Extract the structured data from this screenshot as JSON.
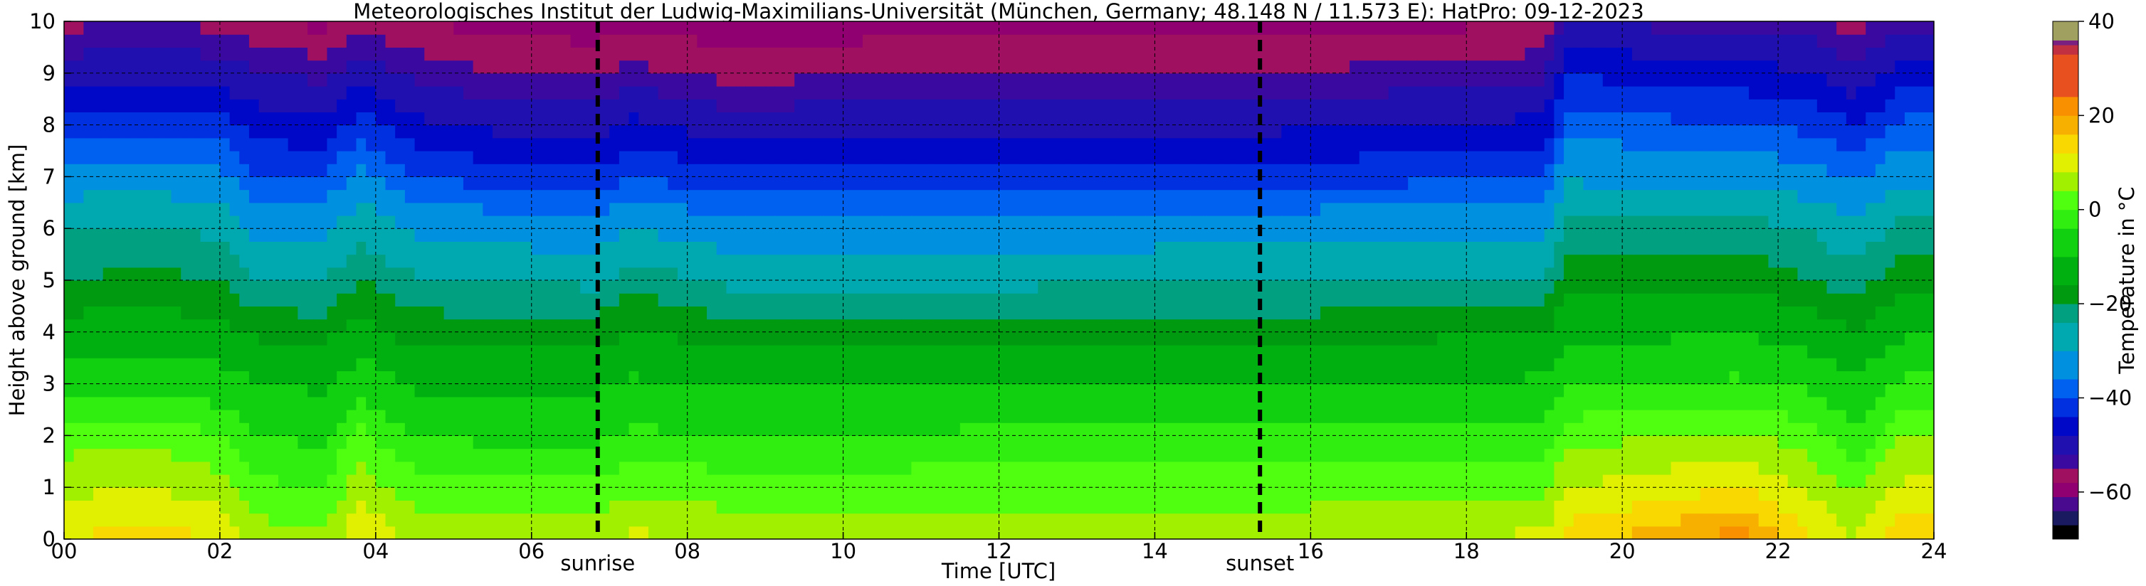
{
  "chart_data": {
    "type": "heatmap",
    "title": "Meteorologisches Institut der Ludwig-Maximilians-Universität (München, Germany; 48.148 N / 11.573 E):    HatPro: 09-12-2023",
    "xlabel": "Time [UTC]",
    "ylabel": "Height above ground [km]",
    "colorbar_label": "Temperature in °C",
    "xlim": [
      0,
      24
    ],
    "ylim": [
      0,
      10
    ],
    "x_ticks": [
      0,
      2,
      4,
      6,
      8,
      10,
      12,
      14,
      16,
      18,
      20,
      22,
      24
    ],
    "x_tick_labels": [
      "00",
      "02",
      "04",
      "06",
      "08",
      "10",
      "12",
      "14",
      "16",
      "18",
      "20",
      "22",
      "24"
    ],
    "y_ticks": [
      0,
      1,
      2,
      3,
      4,
      5,
      6,
      7,
      8,
      9,
      10
    ],
    "y_tick_labels": [
      "0",
      "1",
      "2",
      "3",
      "4",
      "5",
      "6",
      "7",
      "8",
      "9",
      "10"
    ],
    "grid": true,
    "colorbar": {
      "range": [
        -70,
        40
      ],
      "ticks": [
        -60,
        -40,
        -20,
        0,
        20,
        40
      ],
      "tick_labels": [
        "−60",
        "−40",
        "−20",
        "0",
        "20",
        "40"
      ]
    },
    "annotations": [
      {
        "label": "sunrise",
        "x": 6.85
      },
      {
        "label": "sunset",
        "x": 15.35
      }
    ],
    "temperature_profiles": {
      "heights_km": [
        0,
        1,
        2,
        3,
        4,
        5,
        6,
        7,
        8,
        9,
        10
      ],
      "profiles": [
        {
          "time_utc": 0.0,
          "temps_c": [
            12,
            7,
            2,
            -6,
            -14,
            -20,
            -24,
            -34,
            -42,
            -50,
            -56
          ]
        },
        {
          "time_utc": 1.0,
          "temps_c": [
            14,
            8,
            3,
            -5,
            -13,
            -19,
            -23,
            -33,
            -41,
            -49,
            -55
          ]
        },
        {
          "time_utc": 2.0,
          "temps_c": [
            12,
            6,
            0,
            -7,
            -15,
            -20,
            -25,
            -35,
            -42,
            -50,
            -56
          ]
        },
        {
          "time_utc": 2.5,
          "temps_c": [
            6,
            1,
            -4,
            -10,
            -17,
            -24,
            -32,
            -40,
            -46,
            -52,
            -58
          ]
        },
        {
          "time_utc": 3.3,
          "temps_c": [
            5,
            0,
            -5,
            -11,
            -18,
            -24,
            -32,
            -40,
            -47,
            -53,
            -59
          ]
        },
        {
          "time_utc": 3.8,
          "temps_c": [
            12,
            6,
            1,
            -6,
            -14,
            -20,
            -25,
            -35,
            -42,
            -50,
            -56
          ]
        },
        {
          "time_utc": 4.5,
          "temps_c": [
            7,
            2,
            -4,
            -11,
            -18,
            -23,
            -31,
            -40,
            -47,
            -53,
            -58
          ]
        },
        {
          "time_utc": 5.5,
          "temps_c": [
            6,
            1,
            -5,
            -11,
            -18,
            -24,
            -33,
            -42,
            -49,
            -55,
            -59
          ]
        },
        {
          "time_utc": 6.8,
          "temps_c": [
            6,
            1,
            -5,
            -11,
            -18,
            -25,
            -34,
            -43,
            -50,
            -55,
            -60
          ]
        },
        {
          "time_utc": 7.3,
          "temps_c": [
            9,
            3,
            -3,
            -9,
            -16,
            -21,
            -30,
            -40,
            -47,
            -54,
            -59
          ]
        },
        {
          "time_utc": 8.5,
          "temps_c": [
            7,
            2,
            -4,
            -10,
            -18,
            -25,
            -34,
            -43,
            -50,
            -56,
            -60
          ]
        },
        {
          "time_utc": 12.0,
          "temps_c": [
            7,
            2,
            -3,
            -10,
            -18,
            -25,
            -34,
            -42,
            -49,
            -55,
            -59
          ]
        },
        {
          "time_utc": 15.3,
          "temps_c": [
            7,
            2,
            -3,
            -10,
            -18,
            -24,
            -33,
            -42,
            -49,
            -55,
            -59
          ]
        },
        {
          "time_utc": 17.5,
          "temps_c": [
            8,
            2,
            -3,
            -10,
            -17,
            -24,
            -32,
            -41,
            -48,
            -54,
            -59
          ]
        },
        {
          "time_utc": 19.0,
          "temps_c": [
            9,
            3,
            -2,
            -9,
            -16,
            -23,
            -31,
            -40,
            -47,
            -53,
            -58
          ]
        },
        {
          "time_utc": 19.3,
          "temps_c": [
            14,
            8,
            2,
            -4,
            -12,
            -18,
            -22,
            -31,
            -38,
            -44,
            -51
          ]
        },
        {
          "time_utc": 20.5,
          "temps_c": [
            18,
            10,
            4,
            -4,
            -11,
            -17,
            -22,
            -32,
            -39,
            -46,
            -53
          ]
        },
        {
          "time_utc": 21.5,
          "temps_c": [
            22,
            12,
            5,
            -3,
            -10,
            -17,
            -22,
            -32,
            -40,
            -46,
            -53
          ]
        },
        {
          "time_utc": 22.4,
          "temps_c": [
            13,
            7,
            2,
            -5,
            -13,
            -20,
            -24,
            -34,
            -41,
            -48,
            -54
          ]
        },
        {
          "time_utc": 23.0,
          "temps_c": [
            8,
            3,
            -3,
            -9,
            -16,
            -22,
            -28,
            -37,
            -44,
            -51,
            -57
          ]
        },
        {
          "time_utc": 23.6,
          "temps_c": [
            16,
            9,
            4,
            -3,
            -11,
            -17,
            -22,
            -32,
            -39,
            -46,
            -53
          ]
        },
        {
          "time_utc": 24.0,
          "temps_c": [
            16,
            9,
            4,
            -3,
            -11,
            -17,
            -22,
            -32,
            -39,
            -46,
            -53
          ]
        }
      ]
    }
  }
}
